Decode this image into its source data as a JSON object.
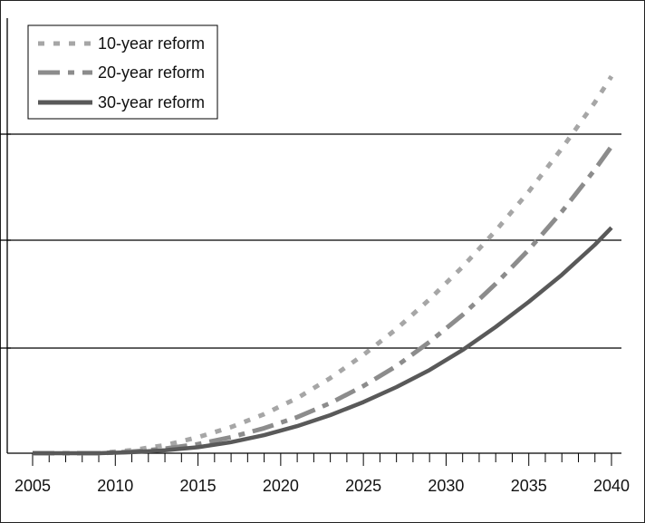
{
  "chart_data": {
    "type": "line",
    "title": "",
    "xlabel": "",
    "ylabel": "",
    "x": [
      2005,
      2007,
      2009,
      2011,
      2013,
      2015,
      2017,
      2019,
      2021,
      2023,
      2025,
      2027,
      2029,
      2031,
      2033,
      2035,
      2037,
      2039,
      2040
    ],
    "series": [
      {
        "name": "10-year reform",
        "color": "#a6a6a6",
        "style": "dotted",
        "values": [
          0.0,
          0.0,
          0.0,
          0.06,
          0.16,
          0.32,
          0.52,
          0.78,
          1.1,
          1.5,
          1.96,
          2.48,
          3.07,
          3.72,
          4.44,
          5.22,
          6.08,
          7.0,
          7.52
        ]
      },
      {
        "name": "20-year reform",
        "color": "#8c8c8c",
        "style": "dashdot",
        "values": [
          0.0,
          0.0,
          0.0,
          0.03,
          0.09,
          0.18,
          0.32,
          0.5,
          0.72,
          1.0,
          1.34,
          1.74,
          2.22,
          2.76,
          3.38,
          4.06,
          4.82,
          5.66,
          6.12
        ]
      },
      {
        "name": "30-year reform",
        "color": "#595959",
        "style": "solid",
        "values": [
          0.0,
          0.0,
          0.0,
          0.02,
          0.06,
          0.12,
          0.22,
          0.36,
          0.54,
          0.76,
          1.02,
          1.32,
          1.66,
          2.06,
          2.52,
          3.02,
          3.56,
          4.16,
          4.5
        ]
      }
    ],
    "xticks": [
      "2005",
      "2010",
      "2015",
      "2020",
      "2025",
      "2030",
      "2035",
      "2040"
    ],
    "xlim": [
      2005,
      2040
    ],
    "ylim": [
      0,
      8.5
    ],
    "grid": "horizontal",
    "legend": "top-left"
  }
}
